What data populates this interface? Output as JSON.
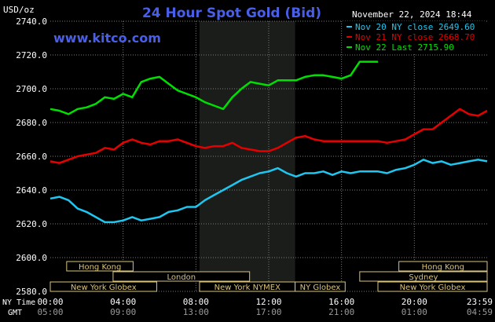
{
  "chart_data": {
    "type": "line",
    "title": "24 Hour Spot Gold (Bid)",
    "site": "www.kitco.com",
    "timestamp": "November 22, 2024 18:44",
    "ylabel": "USD/oz",
    "ylim": [
      2580,
      2740
    ],
    "yticks": [
      "2740.0",
      "2720.0",
      "2700.0",
      "2680.0",
      "2660.0",
      "2640.0",
      "2620.0",
      "2600.0",
      "2580.0"
    ],
    "xlim": [
      0,
      24
    ],
    "xticks": [
      {
        "x": 0,
        "ny": "00:00",
        "gmt": "05:00"
      },
      {
        "x": 4,
        "ny": "04:00",
        "gmt": "09:00"
      },
      {
        "x": 8,
        "ny": "08:00",
        "gmt": "13:00"
      },
      {
        "x": 12,
        "ny": "12:00",
        "gmt": "17:00"
      },
      {
        "x": 16,
        "ny": "16:00",
        "gmt": "21:00"
      },
      {
        "x": 20,
        "ny": "20:00",
        "gmt": "01:00"
      },
      {
        "x": 24,
        "ny": "23:59",
        "gmt": "04:59"
      }
    ],
    "xaxis_labels": {
      "ny": "NY Time",
      "gmt": "GMT"
    },
    "market_hours": [
      {
        "name": "Hong Kong",
        "row": 0,
        "start": 0.9,
        "end": 4.55
      },
      {
        "name": "Hong Kong",
        "row": 0,
        "start": 19.15,
        "end": 24
      },
      {
        "name": "London",
        "row": 1,
        "start": 3.45,
        "end": 10.95
      },
      {
        "name": "Sydney",
        "row": 1,
        "start": 17.0,
        "end": 24
      },
      {
        "name": "New York Globex",
        "row": 2,
        "start": 0,
        "end": 5.85
      },
      {
        "name": "New York NYMEX",
        "row": 2,
        "start": 8.2,
        "end": 13.45
      },
      {
        "name": "NY Globex",
        "row": 2,
        "start": 13.45,
        "end": 16.2
      },
      {
        "name": "New York Globex",
        "row": 2,
        "start": 18.0,
        "end": 24
      }
    ],
    "shaded_region": [
      8.2,
      13.45
    ],
    "series": [
      {
        "name": "Nov 20 NY close 2649.60",
        "color": "#1fc6f0",
        "x": [
          0,
          0.5,
          1,
          1.5,
          2,
          2.5,
          3,
          3.5,
          4,
          4.5,
          5,
          5.5,
          6,
          6.5,
          7,
          7.5,
          8,
          8.5,
          9,
          9.5,
          10,
          10.5,
          11,
          11.5,
          12,
          12.5,
          13,
          13.5,
          14,
          14.5,
          15,
          15.5,
          16,
          16.5,
          17,
          17.5,
          18,
          18.5,
          19,
          19.5,
          20,
          20.5,
          21,
          21.5,
          22,
          22.5,
          23,
          23.5,
          24
        ],
        "values": [
          2635,
          2636,
          2634,
          2629,
          2627,
          2624,
          2621,
          2621,
          2622,
          2624,
          2622,
          2623,
          2624,
          2627,
          2628,
          2630,
          2630,
          2634,
          2637,
          2640,
          2643,
          2646,
          2648,
          2650,
          2651,
          2653,
          2650,
          2648,
          2650,
          2650,
          2651,
          2649,
          2651,
          2650,
          2651,
          2651,
          2651,
          2650,
          2652,
          2653,
          2655,
          2658,
          2656,
          2657,
          2655,
          2656,
          2657,
          2658,
          2657
        ]
      },
      {
        "name": "Nov 21 NY close 2668.70",
        "color": "#e60000",
        "x": [
          0,
          0.5,
          1,
          1.5,
          2,
          2.5,
          3,
          3.5,
          4,
          4.5,
          5,
          5.5,
          6,
          6.5,
          7,
          7.5,
          8,
          8.5,
          9,
          9.5,
          10,
          10.5,
          11,
          11.5,
          12,
          12.5,
          13,
          13.5,
          14,
          14.5,
          15,
          15.5,
          16,
          16.5,
          17,
          17.5,
          18,
          18.5,
          19,
          19.5,
          20,
          20.5,
          21,
          21.5,
          22,
          22.5,
          23,
          23.5,
          24
        ],
        "values": [
          2657,
          2656,
          2658,
          2660,
          2661,
          2662,
          2665,
          2664,
          2668,
          2670,
          2668,
          2667,
          2669,
          2669,
          2670,
          2668,
          2666,
          2665,
          2666,
          2666,
          2668,
          2665,
          2664,
          2663,
          2663,
          2665,
          2668,
          2671,
          2672,
          2670,
          2669,
          2669,
          2669,
          2669,
          2669,
          2669,
          2669,
          2668,
          2669,
          2670,
          2673,
          2676,
          2676,
          2680,
          2684,
          2688,
          2685,
          2684,
          2687
        ]
      },
      {
        "name": "Nov 22 Last 2715.90",
        "color": "#00e000",
        "x": [
          0,
          0.5,
          1,
          1.5,
          2,
          2.5,
          3,
          3.5,
          4,
          4.5,
          5,
          5.5,
          6,
          6.5,
          7,
          7.5,
          8,
          8.5,
          9,
          9.5,
          10,
          10.5,
          11,
          11.5,
          12,
          12.5,
          13,
          13.5,
          14,
          14.5,
          15,
          15.5,
          16,
          16.5,
          17,
          17.5,
          18
        ],
        "values": [
          2688,
          2687,
          2685,
          2688,
          2689,
          2691,
          2695,
          2694,
          2697,
          2695,
          2704,
          2706,
          2707,
          2703,
          2699,
          2697,
          2695,
          2692,
          2690,
          2688,
          2695,
          2700,
          2704,
          2703,
          2702,
          2705,
          2705,
          2705,
          2707,
          2708,
          2708,
          2707,
          2706,
          2708,
          2716,
          2716,
          2716
        ]
      }
    ]
  }
}
